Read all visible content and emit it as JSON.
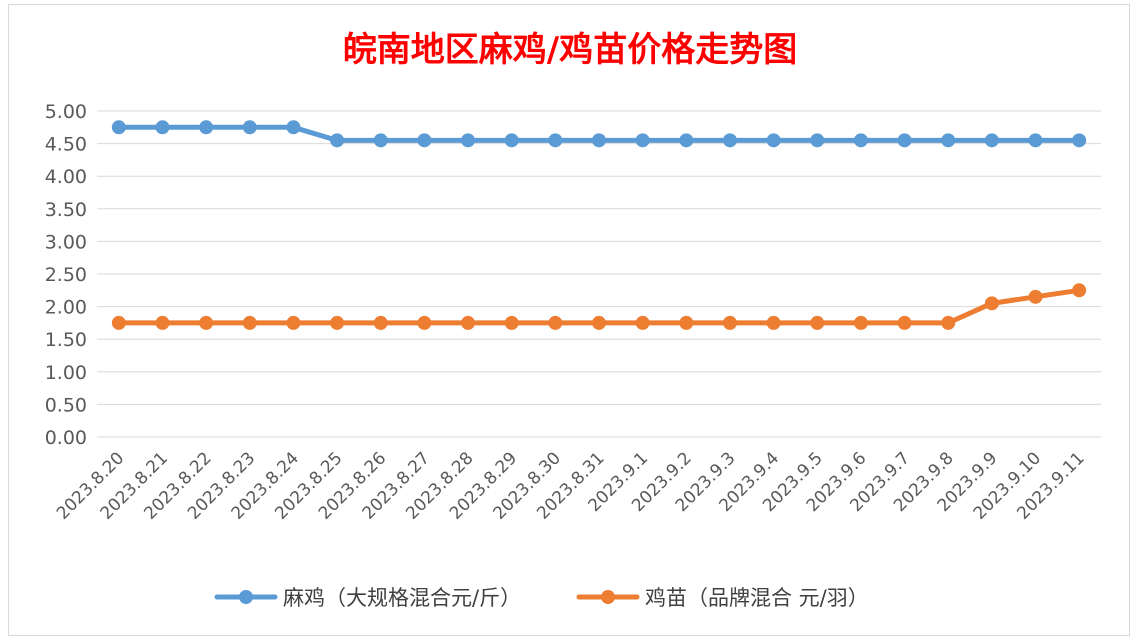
{
  "chart_data": {
    "type": "line",
    "title": "皖南地区麻鸡/鸡苗价格走势图",
    "title_color": "#ff0000",
    "categories": [
      "2023.8.20",
      "2023.8.21",
      "2023.8.22",
      "2023.8.23",
      "2023.8.24",
      "2023.8.25",
      "2023.8.26",
      "2023.8.27",
      "2023.8.28",
      "2023.8.29",
      "2023.8.30",
      "2023.8.31",
      "2023.9.1",
      "2023.9.2",
      "2023.9.3",
      "2023.9.4",
      "2023.9.5",
      "2023.9.6",
      "2023.9.7",
      "2023.9.8",
      "2023.9.9",
      "2023.9.10",
      "2023.9.11"
    ],
    "y_ticks": [
      "0.00",
      "0.50",
      "1.00",
      "1.50",
      "2.00",
      "2.50",
      "3.00",
      "3.50",
      "4.00",
      "4.50",
      "5.00"
    ],
    "ylim": [
      0,
      5
    ],
    "grid": true,
    "legend_position": "bottom",
    "series": [
      {
        "name": "麻鸡（大规格混合元/斤）",
        "color": "#5b9bd5",
        "values": [
          4.75,
          4.75,
          4.75,
          4.75,
          4.75,
          4.55,
          4.55,
          4.55,
          4.55,
          4.55,
          4.55,
          4.55,
          4.55,
          4.55,
          4.55,
          4.55,
          4.55,
          4.55,
          4.55,
          4.55,
          4.55,
          4.55,
          4.55
        ]
      },
      {
        "name": "鸡苗（品牌混合 元/羽）",
        "color": "#ed7d31",
        "values": [
          1.75,
          1.75,
          1.75,
          1.75,
          1.75,
          1.75,
          1.75,
          1.75,
          1.75,
          1.75,
          1.75,
          1.75,
          1.75,
          1.75,
          1.75,
          1.75,
          1.75,
          1.75,
          1.75,
          1.75,
          2.05,
          2.15,
          2.25
        ]
      }
    ]
  }
}
